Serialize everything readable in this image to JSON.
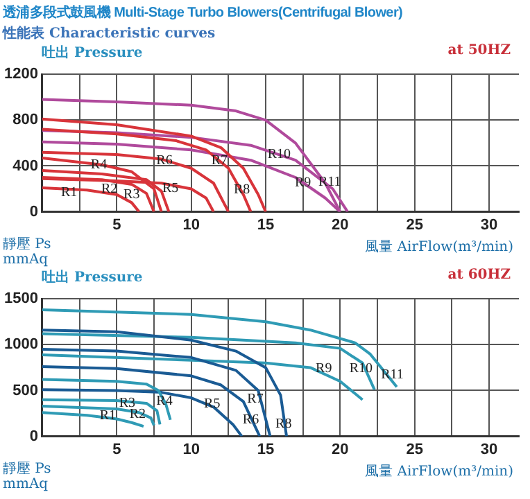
{
  "chart_data": [
    {
      "type": "line",
      "title": "透浦多段式鼓風機 Multi-Stage Turbo Blowers(Centrifugal Blower)",
      "subtitle": "性能表 Characteristic curves",
      "ylabel": "吐出 Pressure",
      "xlabel": "風量 AirFlow(m³/min)",
      "marker": "none",
      "grid": true,
      "xlim": [
        0,
        32
      ],
      "xticks": [
        {
          "value": 2.5,
          "label": null
        },
        5,
        {
          "value": 7.5,
          "label": null
        },
        10,
        {
          "value": 12.5,
          "label": null
        },
        15,
        {
          "value": 17.5,
          "label": null
        },
        20,
        {
          "value": 22.5,
          "label": null
        },
        25,
        {
          "value": 27.5,
          "label": null
        },
        30
      ],
      "ylim": [
        0,
        1200
      ],
      "yticks": [
        0,
        400,
        800,
        1200
      ],
      "annotations": [
        "at 50HZ",
        "靜壓 Ps mmAq",
        {
          "text": "R1",
          "x": 1.8,
          "y": 170
        },
        {
          "text": "R2",
          "x": 4.5,
          "y": 200
        },
        {
          "text": "R3",
          "x": 6,
          "y": 150
        },
        {
          "text": "R4",
          "x": 3.8,
          "y": 409
        },
        {
          "text": "R5",
          "x": 8.6,
          "y": 205
        },
        {
          "text": "R6",
          "x": 8.2,
          "y": 449
        },
        {
          "text": "R7",
          "x": 11.9,
          "y": 444
        },
        {
          "text": "R8",
          "x": 13.4,
          "y": 195
        },
        {
          "text": "R9",
          "x": 17.5,
          "y": 255
        },
        {
          "text": "R10",
          "x": 15.9,
          "y": 502
        },
        {
          "text": "R11",
          "x": 19.3,
          "y": 261
        }
      ],
      "series": [
        {
          "color": "#d8343a",
          "x": [
            0,
            3,
            5,
            6,
            6.5
          ],
          "values": [
            210,
            190,
            150,
            80,
            0
          ]
        },
        {
          "color": "#d8343a",
          "x": [
            0,
            4,
            6,
            7,
            7.5
          ],
          "values": [
            300,
            280,
            240,
            160,
            0
          ]
        },
        {
          "color": "#d8343a",
          "x": [
            0,
            4,
            7,
            8,
            8.5
          ],
          "values": [
            360,
            330,
            280,
            180,
            0
          ]
        },
        {
          "color": "#d8343a",
          "x": [
            0,
            4,
            6,
            7.5,
            8
          ],
          "values": [
            470,
            410,
            350,
            200,
            0
          ]
        },
        {
          "color": "#d8343a",
          "x": [
            0,
            5,
            8,
            10,
            11,
            11.5
          ],
          "values": [
            290,
            270,
            250,
            200,
            120,
            0
          ]
        },
        {
          "color": "#d8343a",
          "x": [
            0,
            5,
            8,
            10,
            11.5,
            12.5
          ],
          "values": [
            520,
            500,
            460,
            380,
            250,
            0
          ]
        },
        {
          "color": "#d8343a",
          "x": [
            0,
            5,
            9,
            11,
            12.5,
            13.5,
            14
          ],
          "values": [
            720,
            680,
            620,
            540,
            380,
            150,
            0
          ]
        },
        {
          "color": "#d8343a",
          "x": [
            0,
            5,
            10,
            12,
            13.5,
            14.5,
            15
          ],
          "values": [
            810,
            760,
            660,
            560,
            380,
            150,
            0
          ]
        },
        {
          "color": "#b04a9c",
          "x": [
            0,
            5,
            10,
            14,
            17,
            19,
            20
          ],
          "values": [
            610,
            590,
            540,
            450,
            300,
            120,
            0
          ]
        },
        {
          "color": "#b04a9c",
          "x": [
            0,
            5,
            10,
            14,
            17,
            19.5,
            20.5
          ],
          "values": [
            710,
            690,
            650,
            580,
            450,
            200,
            0
          ]
        },
        {
          "color": "#b04a9c",
          "x": [
            0,
            5,
            10,
            13,
            15,
            17,
            19,
            20
          ],
          "values": [
            980,
            960,
            930,
            880,
            800,
            600,
            250,
            0
          ]
        }
      ]
    },
    {
      "type": "line",
      "ylabel": "吐出 Pressure",
      "xlabel": "風量 AirFlow(m³/min)",
      "marker": "none",
      "grid": true,
      "xlim": [
        0,
        32
      ],
      "xticks": [
        {
          "value": 2.5,
          "label": null
        },
        5,
        {
          "value": 7.5,
          "label": null
        },
        10,
        {
          "value": 12.5,
          "label": null
        },
        15,
        {
          "value": 17.5,
          "label": null
        },
        20,
        {
          "value": 22.5,
          "label": null
        },
        25,
        {
          "value": 27.5,
          "label": null
        },
        30
      ],
      "ylim": [
        0,
        1500
      ],
      "yticks": [
        0,
        500,
        1000,
        1500
      ],
      "annotations": [
        "at 60HZ",
        "靜壓 Ps mmAq",
        {
          "text": "R1",
          "x": 4.4,
          "y": 227
        },
        {
          "text": "R2",
          "x": 6.4,
          "y": 240
        },
        {
          "text": "R3",
          "x": 5.7,
          "y": 363
        },
        {
          "text": "R4",
          "x": 8.2,
          "y": 384
        },
        {
          "text": "R5",
          "x": 11.4,
          "y": 351
        },
        {
          "text": "R6",
          "x": 14,
          "y": 178
        },
        {
          "text": "R7",
          "x": 14.3,
          "y": 405
        },
        {
          "text": "R8",
          "x": 16.2,
          "y": 136
        },
        {
          "text": "R9",
          "x": 18.9,
          "y": 743
        },
        {
          "text": "R10",
          "x": 21.4,
          "y": 743
        },
        {
          "text": "R11",
          "x": 23.5,
          "y": 673
        }
      ],
      "series": [
        {
          "color": "#2f9bb5",
          "x": [
            0,
            3,
            5,
            6,
            6.8
          ],
          "values": [
            260,
            230,
            190,
            150,
            110
          ]
        },
        {
          "color": "#2f9bb5",
          "x": [
            0,
            5,
            6.5,
            7.3,
            7.5
          ],
          "values": [
            330,
            300,
            260,
            200,
            120
          ]
        },
        {
          "color": "#2f9bb5",
          "x": [
            0,
            5,
            7,
            7.7,
            7.9
          ],
          "values": [
            400,
            390,
            360,
            280,
            130
          ]
        },
        {
          "color": "#2f9bb5",
          "x": [
            0,
            5,
            7,
            7.8,
            8.3,
            8.6
          ],
          "values": [
            620,
            600,
            570,
            500,
            350,
            180
          ]
        },
        {
          "color": "#1a5b94",
          "x": [
            0,
            5,
            8,
            10,
            11.5,
            12.8,
            13.4
          ],
          "values": [
            510,
            500,
            480,
            420,
            320,
            130,
            0
          ]
        },
        {
          "color": "#1a5b94",
          "x": [
            0,
            5,
            10,
            12,
            13.5,
            14.6
          ],
          "values": [
            760,
            740,
            660,
            560,
            380,
            0
          ]
        },
        {
          "color": "#1a5b94",
          "x": [
            0,
            5,
            10,
            13,
            14.5,
            15.3
          ],
          "values": [
            950,
            930,
            860,
            720,
            500,
            0
          ]
        },
        {
          "color": "#1a5b94",
          "x": [
            0,
            5,
            10,
            13,
            15,
            16,
            16.4
          ],
          "values": [
            1160,
            1140,
            1050,
            930,
            750,
            450,
            0
          ]
        },
        {
          "color": "#2f9bb5",
          "x": [
            0,
            10,
            15,
            18,
            20,
            21.5
          ],
          "values": [
            890,
            830,
            800,
            750,
            600,
            400
          ]
        },
        {
          "color": "#2f9bb5",
          "x": [
            0,
            10,
            17,
            20,
            21.5,
            22.3
          ],
          "values": [
            1120,
            1080,
            1020,
            960,
            800,
            510
          ]
        },
        {
          "color": "#2f9bb5",
          "x": [
            0,
            10,
            15,
            18,
            21,
            22,
            23,
            23.8
          ],
          "values": [
            1380,
            1330,
            1250,
            1160,
            1020,
            900,
            700,
            540
          ]
        }
      ]
    }
  ]
}
